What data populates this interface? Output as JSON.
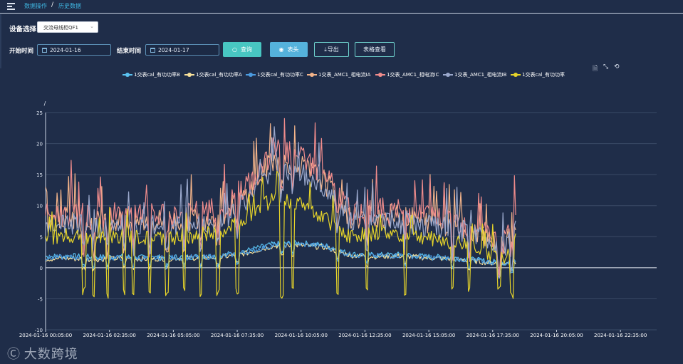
{
  "breadcrumb": {
    "item1": "数据操作",
    "separator": "/",
    "item2": "历史数据"
  },
  "form": {
    "device_label": "设备选择",
    "device_value": "交流母线柜QF1",
    "start_label": "开始时间",
    "start_value": "2024-01-16",
    "end_label": "结束时间",
    "end_value": "2024-01-17"
  },
  "buttons": {
    "query": "查询",
    "header": "表头",
    "export": "导出",
    "table": "表格查看"
  },
  "icons": {
    "menu": "menu-fold-icon",
    "calendar": "calendar-icon",
    "search": "search-icon",
    "eye": "eye-icon",
    "download": "download-icon",
    "data_view": "data-view-icon",
    "zoom": "zoom-icon",
    "restore": "restore-icon"
  },
  "toolbox": {
    "data_view": "🗎",
    "zoom": "⤡",
    "restore": "⟲"
  },
  "watermark": {
    "logo": "Ⓒ",
    "text": "大数跨境"
  },
  "chart_data": {
    "type": "line",
    "title": "",
    "ylabel": "/",
    "xlabel": "",
    "ylim": [
      -10,
      25
    ],
    "yticks": [
      "25",
      "20",
      "15",
      "10",
      "5",
      "0",
      "-5",
      "-10"
    ],
    "x_ticks": [
      "2024-01-16 00:05:00",
      "2024-01-16 02:35:00",
      "2024-01-16 05:05:00",
      "2024-01-16 07:35:00",
      "2024-01-16 10:05:00",
      "2024-01-16 12:35:00",
      "2024-01-16 15:05:00",
      "2024-01-16 17:35:00",
      "2024-01-16 20:05:00",
      "2024-01-16 22:35:00"
    ],
    "x_range_minutes": [
      5,
      1440
    ],
    "grid": true,
    "legend_position": "top-center",
    "series": [
      {
        "name": "1交表cal_有功功率B",
        "color": "#5ac2f0",
        "values": [
          [
            5,
            1.8
          ],
          [
            60,
            1.9
          ],
          [
            120,
            1.7
          ],
          [
            180,
            1.8
          ],
          [
            240,
            1.6
          ],
          [
            300,
            1.7
          ],
          [
            360,
            1.8
          ],
          [
            420,
            2.0
          ],
          [
            480,
            2.8
          ],
          [
            540,
            3.8
          ],
          [
            600,
            4.0
          ],
          [
            660,
            3.6
          ],
          [
            720,
            2.2
          ],
          [
            780,
            2.0
          ],
          [
            840,
            2.1
          ],
          [
            900,
            1.8
          ],
          [
            960,
            1.6
          ],
          [
            1020,
            1.2
          ],
          [
            1080,
            0.8
          ],
          [
            1110,
            1.1
          ]
        ]
      },
      {
        "name": "1交表cal_有功功率A",
        "color": "#f7e09a",
        "values": [
          [
            5,
            1.4
          ],
          [
            60,
            1.5
          ],
          [
            120,
            1.3
          ],
          [
            180,
            1.5
          ],
          [
            240,
            1.4
          ],
          [
            300,
            1.5
          ],
          [
            360,
            1.6
          ],
          [
            420,
            1.7
          ],
          [
            480,
            2.4
          ],
          [
            540,
            3.5
          ],
          [
            600,
            3.6
          ],
          [
            660,
            3.3
          ],
          [
            720,
            2.0
          ],
          [
            780,
            1.8
          ],
          [
            840,
            1.9
          ],
          [
            900,
            1.6
          ],
          [
            960,
            1.4
          ],
          [
            1020,
            1.0
          ],
          [
            1080,
            0.6
          ],
          [
            1110,
            0.9
          ]
        ]
      },
      {
        "name": "1交表cal_有功功率C",
        "color": "#4b9be0",
        "values": [
          [
            5,
            1.6
          ],
          [
            60,
            1.7
          ],
          [
            120,
            1.5
          ],
          [
            180,
            1.6
          ],
          [
            240,
            1.5
          ],
          [
            300,
            1.6
          ],
          [
            360,
            1.7
          ],
          [
            420,
            1.8
          ],
          [
            480,
            2.6
          ],
          [
            540,
            3.6
          ],
          [
            600,
            3.8
          ],
          [
            660,
            3.5
          ],
          [
            720,
            2.1
          ],
          [
            780,
            1.9
          ],
          [
            840,
            2.0
          ],
          [
            900,
            1.7
          ],
          [
            960,
            1.5
          ],
          [
            1020,
            1.1
          ],
          [
            1080,
            0.7
          ],
          [
            1110,
            1.0
          ]
        ]
      },
      {
        "name": "1交表_AMC1_相电流IA",
        "color": "#f3b48a",
        "values": [
          [
            5,
            7.5
          ],
          [
            60,
            8.0
          ],
          [
            120,
            7.2
          ],
          [
            180,
            7.8
          ],
          [
            240,
            7.4
          ],
          [
            300,
            7.6
          ],
          [
            360,
            7.9
          ],
          [
            420,
            8.5
          ],
          [
            480,
            12.0
          ],
          [
            540,
            17.5
          ],
          [
            600,
            16.5
          ],
          [
            660,
            14.0
          ],
          [
            720,
            8.0
          ],
          [
            780,
            8.5
          ],
          [
            840,
            8.2
          ],
          [
            900,
            7.5
          ],
          [
            960,
            7.0
          ],
          [
            1020,
            6.0
          ],
          [
            1080,
            3.5
          ],
          [
            1110,
            7.0
          ]
        ]
      },
      {
        "name": "1交表_AMC1_相电流IC",
        "color": "#f08c8c",
        "values": [
          [
            5,
            8.2
          ],
          [
            60,
            8.8
          ],
          [
            120,
            7.9
          ],
          [
            180,
            8.6
          ],
          [
            240,
            8.1
          ],
          [
            300,
            8.4
          ],
          [
            360,
            8.7
          ],
          [
            420,
            9.3
          ],
          [
            480,
            13.0
          ],
          [
            540,
            19.0
          ],
          [
            600,
            18.0
          ],
          [
            660,
            15.2
          ],
          [
            720,
            8.8
          ],
          [
            780,
            9.3
          ],
          [
            840,
            9.0
          ],
          [
            900,
            8.3
          ],
          [
            960,
            7.7
          ],
          [
            1020,
            6.6
          ],
          [
            1080,
            4.0
          ],
          [
            1110,
            8.0
          ]
        ]
      },
      {
        "name": "1交表_AMC1_相电流IB",
        "color": "#9aa8cc",
        "values": [
          [
            5,
            6.6
          ],
          [
            60,
            7.1
          ],
          [
            120,
            6.4
          ],
          [
            180,
            7.0
          ],
          [
            240,
            6.6
          ],
          [
            300,
            6.8
          ],
          [
            360,
            7.1
          ],
          [
            420,
            7.6
          ],
          [
            480,
            11.0
          ],
          [
            540,
            16.2
          ],
          [
            600,
            15.3
          ],
          [
            660,
            12.9
          ],
          [
            720,
            7.1
          ],
          [
            780,
            7.6
          ],
          [
            840,
            7.3
          ],
          [
            900,
            6.7
          ],
          [
            960,
            6.2
          ],
          [
            1020,
            5.3
          ],
          [
            1080,
            3.0
          ],
          [
            1110,
            6.2
          ]
        ]
      },
      {
        "name": "1交表cal_有功功率",
        "color": "#e6d42a",
        "values": [
          [
            5,
            4.8
          ],
          [
            60,
            5.2
          ],
          [
            120,
            4.5
          ],
          [
            180,
            5.1
          ],
          [
            240,
            4.6
          ],
          [
            300,
            4.9
          ],
          [
            360,
            5.2
          ],
          [
            420,
            5.8
          ],
          [
            480,
            8.5
          ],
          [
            540,
            11.0
          ],
          [
            600,
            10.5
          ],
          [
            660,
            8.0
          ],
          [
            720,
            5.0
          ],
          [
            780,
            5.6
          ],
          [
            840,
            5.3
          ],
          [
            900,
            4.8
          ],
          [
            960,
            4.2
          ],
          [
            1020,
            3.2
          ],
          [
            1080,
            1.5
          ],
          [
            1110,
            4.5
          ]
        ]
      }
    ]
  }
}
